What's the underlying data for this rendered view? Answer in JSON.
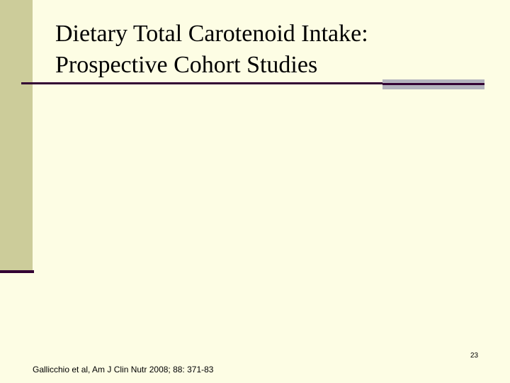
{
  "slide": {
    "title_line1": "Dietary Total Carotenoid Intake:",
    "title_line2": "Prospective Cohort Studies",
    "citation": "Gallicchio et al, Am J Clin Nutr 2008; 88: 371-83",
    "page_number": "23"
  }
}
